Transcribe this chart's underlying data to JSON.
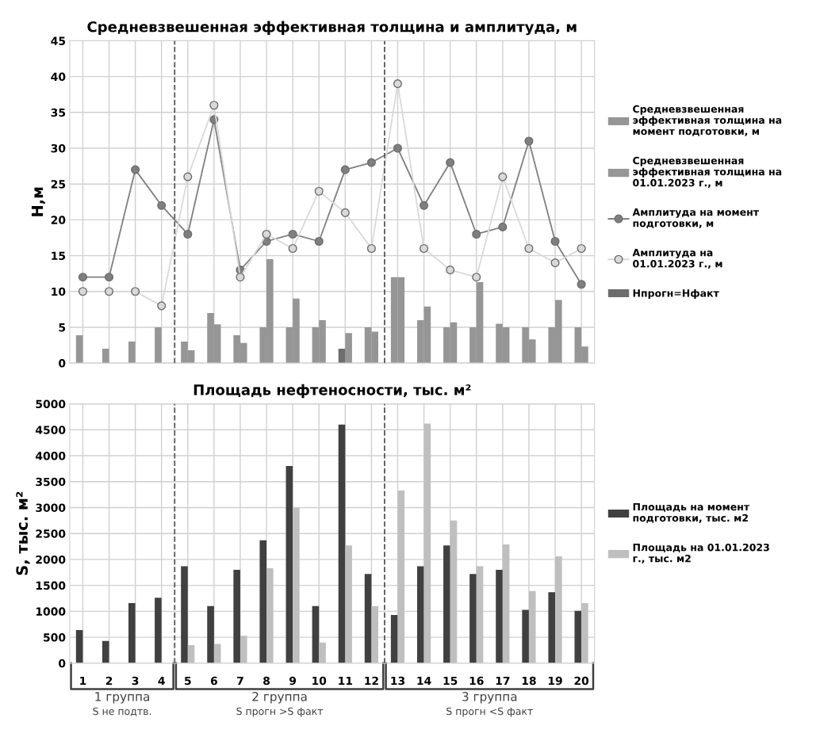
{
  "chart_data": [
    {
      "type": "bar",
      "title": "Средневзвешенная эффективная толщина и амплитуда, м",
      "ylabel": "Н,м",
      "x": [
        1,
        2,
        3,
        4,
        5,
        6,
        7,
        8,
        9,
        10,
        11,
        12,
        13,
        14,
        15,
        16,
        17,
        18,
        19,
        20
      ],
      "xlim": [
        0.5,
        20.5
      ],
      "xticks": [
        1,
        2,
        3,
        4,
        5,
        6,
        7,
        8,
        9,
        10,
        11,
        12,
        13,
        14,
        15,
        16,
        17,
        18,
        19,
        20
      ],
      "ylim": [
        0,
        45
      ],
      "yticks": [
        0,
        5,
        10,
        15,
        20,
        25,
        30,
        35,
        40,
        45
      ],
      "grid": true,
      "legend": "right",
      "tick_labels": "y",
      "marker": "circle",
      "series": [
        {
          "name": "Средневзвешенная эффективная толщина на момент подготовки, м",
          "color": "#969696",
          "values": [
            3.9,
            2,
            3,
            5,
            3,
            7,
            3.9,
            5,
            5,
            5,
            null,
            5,
            12,
            6,
            5,
            5,
            5.5,
            5,
            5,
            5
          ]
        },
        {
          "name": "Средневзвешенная эффективная толщина на 01.01.2023 г., м",
          "color": "#969696",
          "values": [
            null,
            null,
            null,
            null,
            1.8,
            5.4,
            2.8,
            14.5,
            9,
            6,
            4.2,
            4.4,
            12,
            7.9,
            5.7,
            11.3,
            5,
            3.3,
            8.8,
            2.3
          ]
        },
        {
          "name": "Амплитуда на момент подготовки, м",
          "type": "line",
          "color": "#7f7f7f",
          "values": [
            12,
            12,
            27,
            22,
            18,
            34,
            13,
            17,
            18,
            17,
            27,
            28,
            30,
            22,
            28,
            18,
            19,
            31,
            17,
            11
          ]
        },
        {
          "name": "Амплитуда на 01.01.2023 г., м",
          "type": "line",
          "color": "#d9d9d9",
          "values": [
            10,
            10,
            10,
            8,
            26,
            36,
            12,
            18,
            16,
            24,
            21,
            16,
            39,
            16,
            13,
            12,
            26,
            16,
            14,
            16
          ]
        },
        {
          "name": "Нпрогн=Нфакт",
          "color": "#6e6e6e",
          "values": [
            null,
            null,
            null,
            null,
            null,
            null,
            null,
            null,
            null,
            null,
            2,
            null,
            null,
            null,
            null,
            null,
            null,
            null,
            null,
            null
          ]
        }
      ],
      "ref_lines": [
        {
          "axis": "x",
          "value": 4.5,
          "color": "#595959",
          "line_style": "dashed"
        },
        {
          "axis": "x",
          "value": 12.5,
          "color": "#595959",
          "line_style": "dashed"
        }
      ]
    },
    {
      "type": "bar",
      "title": "Площадь нефтеносности, тыс. м²",
      "ylabel": "S, тыс. м²",
      "x": [
        1,
        2,
        3,
        4,
        5,
        6,
        7,
        8,
        9,
        10,
        11,
        12,
        13,
        14,
        15,
        16,
        17,
        18,
        19,
        20
      ],
      "xlim": [
        0.5,
        20.5
      ],
      "xticks": [
        1,
        2,
        3,
        4,
        5,
        6,
        7,
        8,
        9,
        10,
        11,
        12,
        13,
        14,
        15,
        16,
        17,
        18,
        19,
        20
      ],
      "ylim": [
        0,
        5000
      ],
      "yticks": [
        0,
        500,
        1000,
        1500,
        2000,
        2500,
        3000,
        3500,
        4000,
        4500,
        5000
      ],
      "grid": true,
      "legend": "right",
      "series": [
        {
          "name": "Площадь на момент подготовки, тыс. м2",
          "color": "#404040",
          "values": [
            640,
            430,
            1160,
            1260,
            1870,
            1100,
            1800,
            2370,
            3800,
            1100,
            4600,
            1720,
            930,
            1870,
            2270,
            1720,
            1800,
            1030,
            1370,
            1010
          ]
        },
        {
          "name": "Площадь на 01.01.2023 г., тыс. м2",
          "color": "#bfbfbf",
          "values": [
            null,
            null,
            null,
            null,
            350,
            370,
            530,
            1830,
            3000,
            400,
            2270,
            1100,
            3330,
            4620,
            2750,
            1870,
            2290,
            1390,
            2060,
            1160
          ]
        }
      ],
      "ref_lines": [
        {
          "axis": "x",
          "value": 4.5,
          "color": "#595959",
          "line_style": "dashed"
        },
        {
          "axis": "x",
          "value": 12.5,
          "color": "#595959",
          "line_style": "dashed"
        }
      ],
      "annotations": [
        "1 группа",
        "S не подтв.",
        "2 группа",
        "S прогн >S факт",
        "3 группа",
        "S прогн <S факт"
      ]
    }
  ]
}
